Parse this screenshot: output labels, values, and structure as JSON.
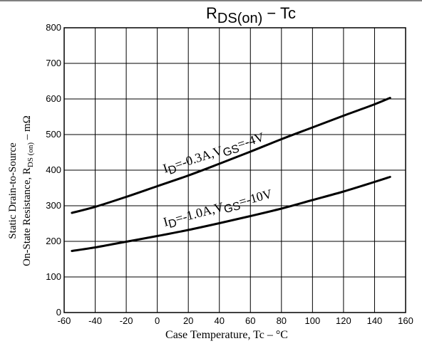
{
  "chart_data": {
    "type": "line",
    "title": {
      "main": "R",
      "sub": "DS(on)",
      "dash": "−",
      "rest": "Tc"
    },
    "xlabel": "Case Temperature, Tc  –  °C",
    "ylabel": {
      "line1": "Static Drain-to-Source",
      "line2_pre": "On-State Resistance, R",
      "line2_sub": "DS (on)",
      "line2_post": "  –  mΩ"
    },
    "xlim": [
      -60,
      160
    ],
    "ylim": [
      0,
      800
    ],
    "xticks": [
      -60,
      -40,
      -20,
      0,
      20,
      40,
      60,
      80,
      100,
      120,
      140,
      160
    ],
    "yticks": [
      0,
      100,
      200,
      300,
      400,
      500,
      600,
      700,
      800
    ],
    "grid": true,
    "series": [
      {
        "annotation": {
          "p1": "I",
          "s1": "D",
          "p2": "=-0.3A,V",
          "s2": "GS",
          "p3": "=-4V"
        },
        "x": [
          -55,
          -40,
          -20,
          0,
          20,
          40,
          60,
          80,
          100,
          120,
          140,
          150
        ],
        "y": [
          280,
          297,
          325,
          355,
          385,
          418,
          452,
          487,
          520,
          553,
          585,
          603
        ]
      },
      {
        "annotation": {
          "p1": "I",
          "s1": "D",
          "p2": "=-1.0A,V",
          "s2": "GS",
          "p3": "=-10V"
        },
        "x": [
          -55,
          -40,
          -20,
          0,
          20,
          40,
          60,
          80,
          100,
          120,
          140,
          150
        ],
        "y": [
          173,
          183,
          199,
          215,
          232,
          251,
          271,
          292,
          316,
          340,
          367,
          381
        ]
      }
    ]
  }
}
